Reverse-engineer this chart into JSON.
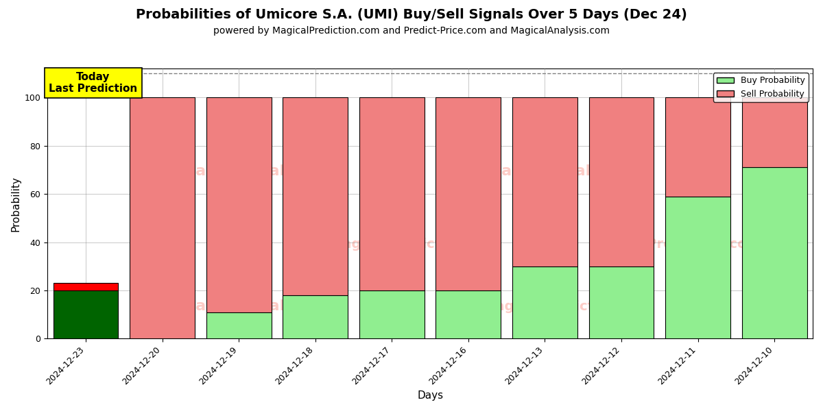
{
  "title": "Probabilities of Umicore S.A. (UMI) Buy/Sell Signals Over 5 Days (Dec 24)",
  "subtitle": "powered by MagicalPrediction.com and Predict-Price.com and MagicalAnalysis.com",
  "xlabel": "Days",
  "ylabel": "Probability",
  "categories": [
    "2024-12-23",
    "2024-12-20",
    "2024-12-19",
    "2024-12-18",
    "2024-12-17",
    "2024-12-16",
    "2024-12-13",
    "2024-12-12",
    "2024-12-11",
    "2024-12-10"
  ],
  "buy_values": [
    20,
    0,
    11,
    18,
    20,
    20,
    30,
    30,
    59,
    71
  ],
  "sell_values": [
    3,
    100,
    89,
    82,
    80,
    80,
    70,
    70,
    41,
    29
  ],
  "today_buy_color": "#006400",
  "today_sell_color": "#ff0000",
  "other_buy_color": "#90ee90",
  "other_sell_color": "#f08080",
  "legend_buy_color": "#90ee90",
  "legend_sell_color": "#f08080",
  "bar_edge_color": "black",
  "bar_width": 0.85,
  "ylim": [
    0,
    112
  ],
  "yticks": [
    0,
    20,
    40,
    60,
    80,
    100
  ],
  "dashed_line_y": 110,
  "today_annotation": "Today\nLast Prediction",
  "annotation_bg_color": "yellow",
  "figsize": [
    12,
    6
  ],
  "dpi": 100,
  "title_fontsize": 14,
  "subtitle_fontsize": 10,
  "axis_label_fontsize": 11,
  "tick_fontsize": 9,
  "legend_fontsize": 9,
  "annotation_fontsize": 11
}
